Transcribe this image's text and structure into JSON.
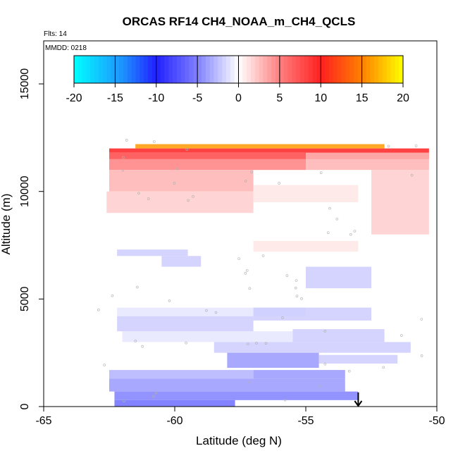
{
  "chart_data": {
    "type": "heatmap",
    "title": "ORCAS RF14 CH4_NOAA_m_CH4_QCLS",
    "subtitle": "Flts: 14",
    "inset_label": "MMDD: 0218",
    "xlabel": "Latitude (deg N)",
    "ylabel": "Altitude (m)",
    "xlim": [
      -65,
      -50
    ],
    "ylim": [
      0,
      17000
    ],
    "x_ticks": [
      -65,
      -60,
      -55,
      -50
    ],
    "x_tick_labels": [
      "-65",
      "-60",
      "-55",
      "-50"
    ],
    "y_ticks": [
      0,
      5000,
      10000,
      15000
    ],
    "y_tick_labels": [
      "0",
      "5000",
      "10000",
      "15000"
    ],
    "colorbar": {
      "range": [
        -20,
        20
      ],
      "ticks": [
        -20,
        -15,
        -10,
        -5,
        0,
        5,
        10,
        15,
        20
      ],
      "tick_labels": [
        "-20",
        "-15",
        "-10",
        "-5",
        "0",
        "5",
        "10",
        "15",
        "20"
      ],
      "stops": [
        {
          "value": -20,
          "color": "#00ffff"
        },
        {
          "value": -14,
          "color": "#1e90ff"
        },
        {
          "value": -10,
          "color": "#2020ff"
        },
        {
          "value": -5,
          "color": "#8080ff"
        },
        {
          "value": 0,
          "color": "#ffffff"
        },
        {
          "value": 5,
          "color": "#ff8080"
        },
        {
          "value": 10,
          "color": "#ff2020"
        },
        {
          "value": 15,
          "color": "#ff8000"
        },
        {
          "value": 20,
          "color": "#ffff00"
        }
      ]
    },
    "fields": [
      {
        "lat": [
          -62.5,
          -50.3
        ],
        "alt": [
          11800,
          12000
        ],
        "value": 10
      },
      {
        "lat": [
          -62.5,
          -50.3
        ],
        "alt": [
          11500,
          11800
        ],
        "value": 8
      },
      {
        "lat": [
          -62.5,
          -55.0
        ],
        "alt": [
          11000,
          11500
        ],
        "value": 5
      },
      {
        "lat": [
          -55.0,
          -50.3
        ],
        "alt": [
          11000,
          11800
        ],
        "value": 3
      },
      {
        "lat": [
          -62.5,
          -57.0
        ],
        "alt": [
          10000,
          11000
        ],
        "value": 3
      },
      {
        "lat": [
          -62.6,
          -57.0
        ],
        "alt": [
          9000,
          10000
        ],
        "value": 2
      },
      {
        "lat": [
          -57.0,
          -53.0
        ],
        "alt": [
          9500,
          10300
        ],
        "value": 1
      },
      {
        "lat": [
          -52.5,
          -50.3
        ],
        "alt": [
          8000,
          11000
        ],
        "value": 2
      },
      {
        "lat": [
          -57.0,
          -53.0
        ],
        "alt": [
          7200,
          7700
        ],
        "value": 1
      },
      {
        "lat": [
          -62.2,
          -59.5
        ],
        "alt": [
          7000,
          7300
        ],
        "value": -2
      },
      {
        "lat": [
          -60.5,
          -59.0
        ],
        "alt": [
          6500,
          7000
        ],
        "value": -2
      },
      {
        "lat": [
          -55.0,
          -52.5
        ],
        "alt": [
          5500,
          6500
        ],
        "value": -2
      },
      {
        "lat": [
          -62.2,
          -55.0
        ],
        "alt": [
          4200,
          4600
        ],
        "value": -1
      },
      {
        "lat": [
          -62.2,
          -57.0
        ],
        "alt": [
          3500,
          4200
        ],
        "value": -2
      },
      {
        "lat": [
          -57.0,
          -52.5
        ],
        "alt": [
          4000,
          4600
        ],
        "value": -2
      },
      {
        "lat": [
          -62.0,
          -55.5
        ],
        "alt": [
          3000,
          3500
        ],
        "value": -1
      },
      {
        "lat": [
          -55.5,
          -52.0
        ],
        "alt": [
          3000,
          3600
        ],
        "value": -2
      },
      {
        "lat": [
          -58.5,
          -51.0
        ],
        "alt": [
          2500,
          3000
        ],
        "value": -2
      },
      {
        "lat": [
          -58.0,
          -54.5
        ],
        "alt": [
          1800,
          2500
        ],
        "value": -4
      },
      {
        "lat": [
          -54.5,
          -51.5
        ],
        "alt": [
          2000,
          2400
        ],
        "value": -2
      },
      {
        "lat": [
          -62.5,
          -57.0
        ],
        "alt": [
          1300,
          1700
        ],
        "value": -3
      },
      {
        "lat": [
          -57.0,
          -53.5
        ],
        "alt": [
          1300,
          1700
        ],
        "value": -4
      },
      {
        "lat": [
          -62.5,
          -53.5
        ],
        "alt": [
          700,
          1300
        ],
        "value": -4
      },
      {
        "lat": [
          -62.3,
          -53.0
        ],
        "alt": [
          300,
          700
        ],
        "value": -5
      },
      {
        "lat": [
          -62.3,
          -57.7
        ],
        "alt": [
          0,
          300
        ],
        "value": -6
      },
      {
        "lat": [
          -61.5,
          -52.0
        ],
        "alt": [
          12000,
          12200
        ],
        "value": 16
      }
    ],
    "marker": {
      "symbol": "arrow-down",
      "lat": -53.0
    }
  }
}
